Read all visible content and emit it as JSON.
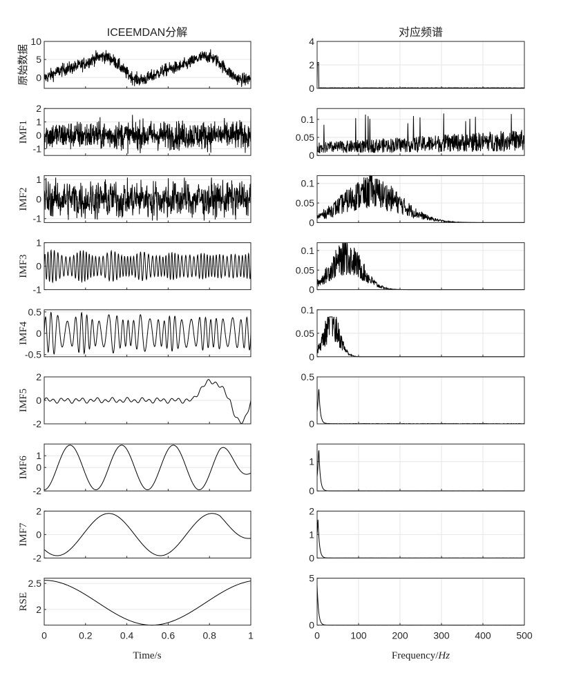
{
  "titles": {
    "left": "ICEEMDAN分解",
    "right": "对应频谱"
  },
  "axes": {
    "left_xlabel": "Time/s",
    "right_xlabel_prefix": "Frequency/",
    "right_xlabel_unit": "Hz"
  },
  "chart_data": {
    "type": "line",
    "grid": "horizontal only",
    "time_axis": {
      "range": [
        0,
        1
      ],
      "ticks": [
        0,
        0.2,
        0.4,
        0.6,
        0.8,
        1
      ]
    },
    "freq_axis": {
      "range": [
        0,
        500
      ],
      "ticks": [
        0,
        100,
        200,
        300,
        400,
        500
      ]
    },
    "rows": [
      {
        "label": "原始数据",
        "time": {
          "ylim": [
            -3,
            10
          ],
          "yticks": [
            0,
            5,
            10
          ],
          "signal": "noisy_sum"
        },
        "spectrum": {
          "ylim": [
            0,
            4
          ],
          "yticks": [
            0,
            2,
            4
          ],
          "peaks": [
            {
              "hz": 2,
              "amp": 2.2
            }
          ],
          "floor": 0.04
        }
      },
      {
        "label": "IMF1",
        "time": {
          "ylim": [
            -1.5,
            2
          ],
          "yticks": [
            -1,
            0,
            1,
            2
          ],
          "signal": "high_noise",
          "amplitude": 1.2
        },
        "spectrum": {
          "ylim": [
            0,
            0.13
          ],
          "yticks": [
            0,
            0.05,
            0.1
          ],
          "shape": "rising_noise",
          "start": 0.02,
          "end": 0.04,
          "max": 0.12
        }
      },
      {
        "label": "IMF2",
        "time": {
          "ylim": [
            -1.2,
            1.2
          ],
          "yticks": [
            -1,
            0,
            1
          ],
          "signal": "mid_noise",
          "amplitude": 0.8
        },
        "spectrum": {
          "ylim": [
            0,
            0.12
          ],
          "yticks": [
            0,
            0.05,
            0.1
          ],
          "shape": "band",
          "center_hz": 130,
          "peak": 0.085,
          "max": 0.12
        }
      },
      {
        "label": "IMF3",
        "time": {
          "ylim": [
            -1,
            1
          ],
          "yticks": [
            -1,
            0,
            1
          ],
          "signal": "modulated",
          "carrier_hz": 60,
          "amplitude": 0.7
        },
        "spectrum": {
          "ylim": [
            0,
            0.12
          ],
          "yticks": [
            0,
            0.05,
            0.1
          ],
          "shape": "band",
          "center_hz": 70,
          "peak": 0.09,
          "max": 0.12
        }
      },
      {
        "label": "IMF4",
        "time": {
          "ylim": [
            -0.55,
            0.55
          ],
          "yticks": [
            -0.5,
            0,
            0.5
          ],
          "signal": "modulated",
          "carrier_hz": 30,
          "amplitude": 0.5
        },
        "spectrum": {
          "ylim": [
            0,
            0.1
          ],
          "yticks": [
            0,
            0.05,
            0.1
          ],
          "shape": "band",
          "center_hz": 35,
          "peak": 0.075,
          "max": 0.085
        }
      },
      {
        "label": "IMF5",
        "time": {
          "ylim": [
            -2,
            2
          ],
          "yticks": [
            -2,
            0,
            2
          ],
          "signal": "imf5",
          "amplitude": 1.6
        },
        "spectrum": {
          "ylim": [
            0,
            0.5
          ],
          "yticks": [
            0,
            0.5
          ],
          "shape": "lowpeak",
          "peak_hz": 4,
          "peak": 0.4
        }
      },
      {
        "label": "IMF6",
        "time": {
          "ylim": [
            -2,
            2
          ],
          "yticks": [
            -2,
            0,
            1
          ],
          "signal": "sine",
          "freq_hz": 4,
          "amplitude": 1.9,
          "phase_deg": -90
        },
        "spectrum": {
          "ylim": [
            0,
            1.6
          ],
          "yticks": [
            0,
            1
          ],
          "shape": "lowpeak",
          "peak_hz": 4,
          "peak": 1.5
        }
      },
      {
        "label": "IMF7",
        "time": {
          "ylim": [
            -2,
            2
          ],
          "yticks": [
            -2,
            0,
            2
          ],
          "signal": "sine",
          "freq_hz": 2,
          "amplitude": 1.8,
          "phase_deg": -135
        },
        "spectrum": {
          "ylim": [
            0,
            2
          ],
          "yticks": [
            0,
            1,
            2
          ],
          "shape": "lowpeak",
          "peak_hz": 2,
          "peak": 1.7
        }
      },
      {
        "label": "RSE",
        "time": {
          "ylim": [
            1.7,
            2.6
          ],
          "yticks": [
            2,
            2.5
          ],
          "signal": "cosine_trend",
          "center": 2.13,
          "amplitude": 0.43,
          "freq_hz": 0.96
        },
        "spectrum": {
          "ylim": [
            0,
            5
          ],
          "yticks": [
            0,
            5
          ],
          "shape": "lowpeak",
          "peak_hz": 0,
          "peak": 4.3
        }
      }
    ]
  }
}
